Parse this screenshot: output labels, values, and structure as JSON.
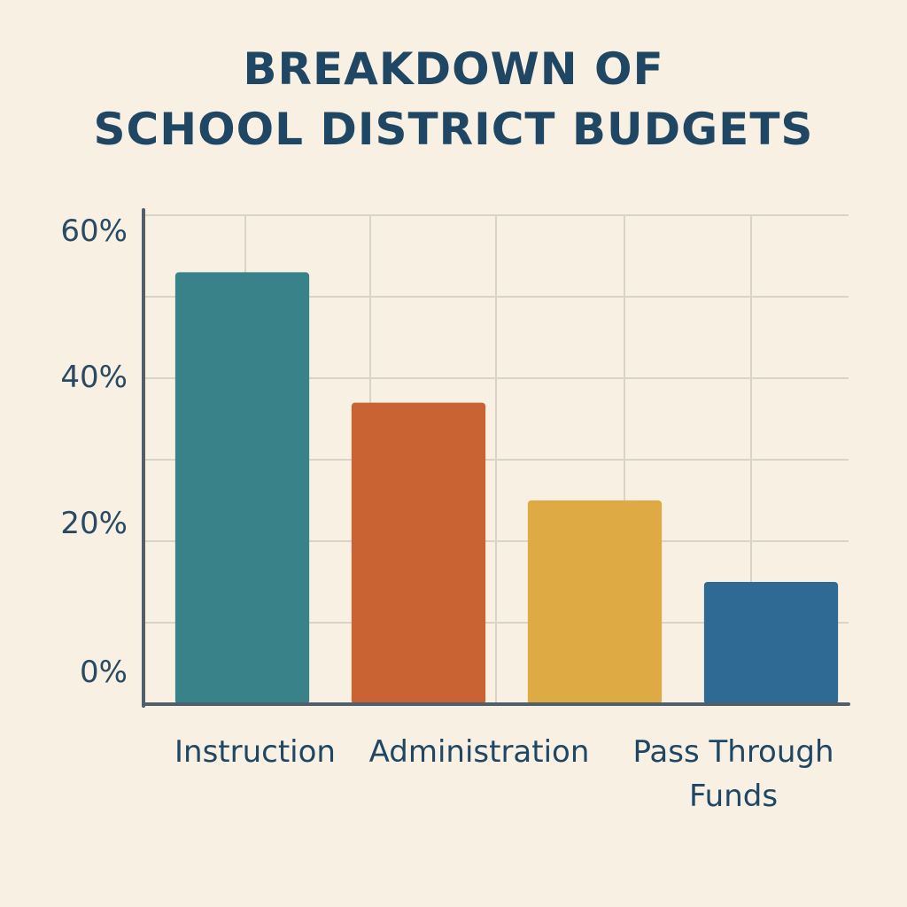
{
  "title": {
    "line1": "BREAKDOWN OF",
    "line2": "SCHOOL DISTRICT BUDGETS"
  },
  "chart_data": {
    "type": "bar",
    "title": "BREAKDOWN OF SCHOOL DISTRICT BUDGETS",
    "categories": [
      "Instruction",
      "Administration",
      "",
      "Pass Through Funds"
    ],
    "category_label_lines": [
      [
        "Instruction"
      ],
      [
        "Administration"
      ],
      [],
      [
        "Pass Through",
        "Funds"
      ]
    ],
    "values": [
      53,
      37,
      25,
      15
    ],
    "colors": [
      "#3a8289",
      "#c96334",
      "#ddaa44",
      "#2f6a95"
    ],
    "y_ticks": [
      {
        "value": 0,
        "label": "0%"
      },
      {
        "value": 20,
        "label": "20%"
      },
      {
        "value": 40,
        "label": "40%"
      },
      {
        "value": 60,
        "label": "60%"
      }
    ],
    "ylim": [
      0,
      60
    ],
    "xlabel": "",
    "ylabel": "",
    "grid": true,
    "legend": "none"
  }
}
